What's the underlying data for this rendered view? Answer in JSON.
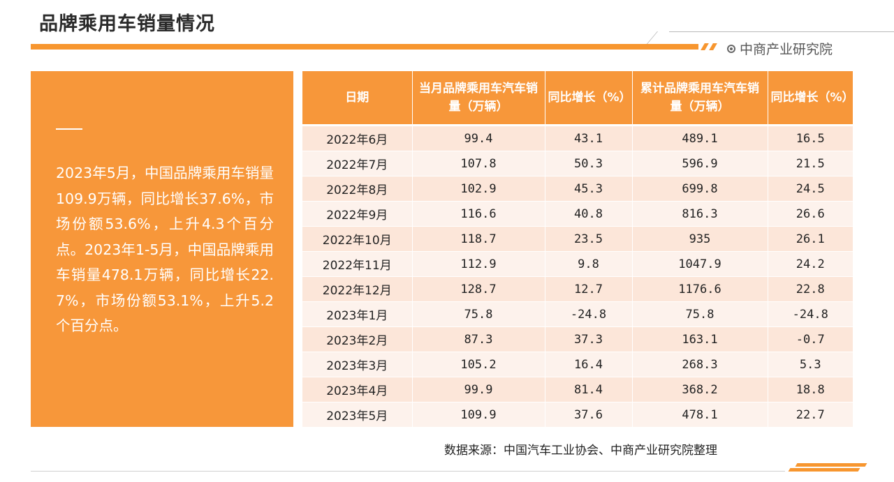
{
  "page": {
    "title": "品牌乘用车销量情况",
    "brand": "中商产业研究院",
    "source": "数据来源：中国汽车工业协会、中商产业研究院整理"
  },
  "summary": {
    "text": "2023年5月，中国品牌乘用车销量109.9万辆，同比增长37.6%，市场份额53.6%，上升4.3个百分点。2023年1-5月，中国品牌乘用车销量478.1万辆，同比增长22.7%，市场份额53.1%，上升5.2个百分点。"
  },
  "table": {
    "headers": [
      "日期",
      "当月品牌乘用车汽车销量（万辆）",
      "同比增长（%）",
      "累计品牌乘用车汽车销量（万辆）",
      "同比增长（%）"
    ],
    "rows": [
      [
        "2022年6月",
        "99.4",
        "43.1",
        "489.1",
        "16.5"
      ],
      [
        "2022年7月",
        "107.8",
        "50.3",
        "596.9",
        "21.5"
      ],
      [
        "2022年8月",
        "102.9",
        "45.3",
        "699.8",
        "24.5"
      ],
      [
        "2022年9月",
        "116.6",
        "40.8",
        "816.3",
        "26.6"
      ],
      [
        "2022年10月",
        "118.7",
        "23.5",
        "935",
        "26.1"
      ],
      [
        "2022年11月",
        "112.9",
        "9.8",
        "1047.9",
        "24.2"
      ],
      [
        "2022年12月",
        "128.7",
        "12.7",
        "1176.6",
        "22.8"
      ],
      [
        "2023年1月",
        "75.8",
        "-24.8",
        "75.8",
        "-24.8"
      ],
      [
        "2023年2月",
        "87.3",
        "37.3",
        "163.1",
        "-0.7"
      ],
      [
        "2023年3月",
        "105.2",
        "16.4",
        "268.3",
        "5.3"
      ],
      [
        "2023年4月",
        "99.9",
        "81.4",
        "368.2",
        "18.8"
      ],
      [
        "2023年5月",
        "109.9",
        "37.6",
        "478.1",
        "22.7"
      ]
    ]
  },
  "colors": {
    "accent": "#f7973a",
    "row_odd": "#fce6d9",
    "row_even": "#fdf2ec"
  }
}
